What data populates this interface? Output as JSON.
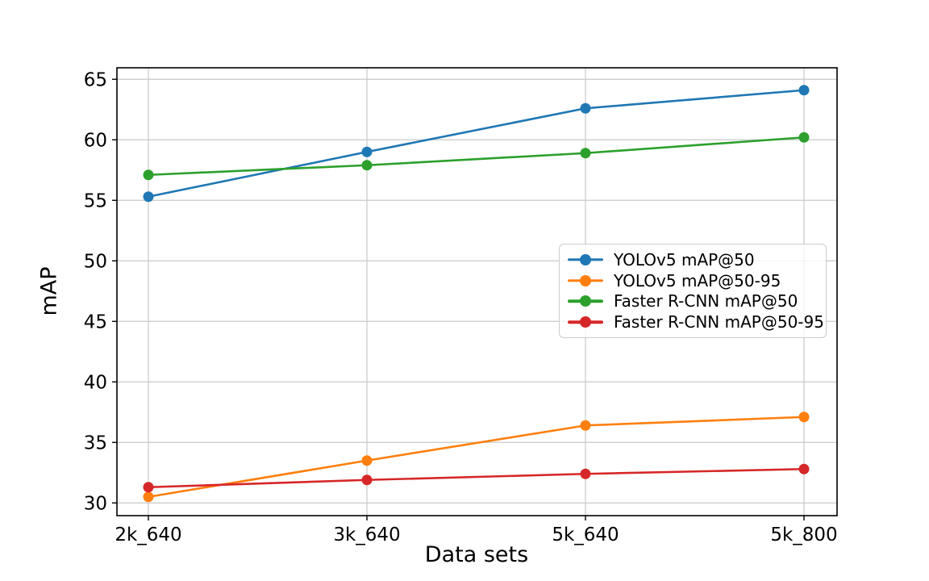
{
  "chart_data": {
    "type": "line",
    "title": "",
    "xlabel": "Data sets",
    "ylabel": "mAP",
    "categories": [
      "2k_640",
      "3k_640",
      "5k_640",
      "5k_800"
    ],
    "series": [
      {
        "name": "YOLOv5 mAP@50",
        "color": "#1f77b4",
        "marker": "circle",
        "values": [
          55.3,
          59.0,
          62.6,
          64.1
        ]
      },
      {
        "name": "YOLOv5 mAP@50-95",
        "color": "#ff7f0e",
        "marker": "circle",
        "values": [
          30.5,
          33.5,
          36.4,
          37.1
        ]
      },
      {
        "name": "Faster R-CNN mAP@50",
        "color": "#2ca02c",
        "marker": "circle",
        "values": [
          57.1,
          57.9,
          58.9,
          60.2
        ]
      },
      {
        "name": "Faster R-CNN mAP@50-95",
        "color": "#d62728",
        "marker": "circle",
        "values": [
          31.3,
          31.9,
          32.4,
          32.8
        ]
      }
    ],
    "yticks": [
      30,
      35,
      40,
      45,
      50,
      55,
      60,
      65
    ],
    "ylim": [
      28.95,
      65.95
    ],
    "grid": true,
    "grid_color": "#c9c9c9",
    "spine_color": "#000000",
    "tick_label_color": "#000000",
    "legend_location": "center right"
  }
}
